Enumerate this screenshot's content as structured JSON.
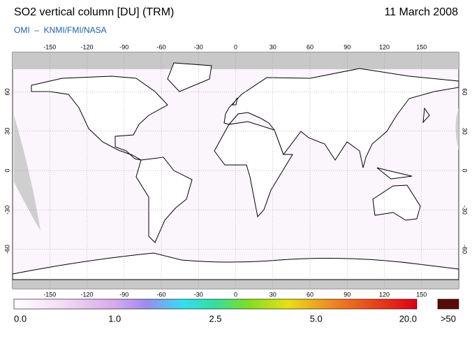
{
  "header": {
    "title": "SO2 vertical column [DU] (TRM)",
    "date": "11 March 2008",
    "source": "OMI  –  KNMI/FMI/NASA"
  },
  "map": {
    "xlim": [
      -180,
      180
    ],
    "ylim": [
      -90,
      90
    ],
    "lon_ticks": [
      -150,
      -120,
      -90,
      -60,
      -30,
      0,
      30,
      60,
      90,
      120,
      150
    ],
    "lat_ticks": [
      60,
      30,
      0,
      -30,
      -60
    ],
    "grid": true
  },
  "colorbar": {
    "labels": [
      "0.0",
      "1.0",
      "2.5",
      "5.0",
      "20.0"
    ],
    "overflow_label": ">50"
  }
}
